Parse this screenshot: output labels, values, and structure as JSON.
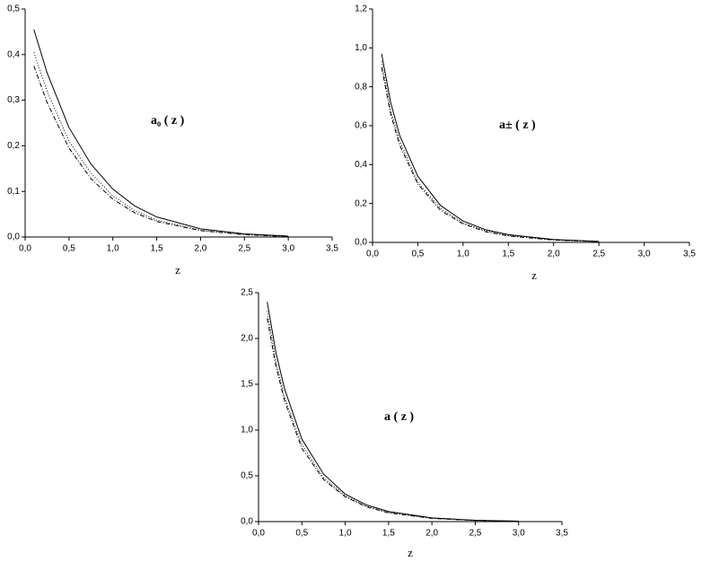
{
  "chart_data": [
    {
      "type": "line",
      "annotation": "a₀ ( z )",
      "x_label": "z",
      "xlim": [
        0,
        3.5
      ],
      "ylim": [
        0,
        0.5
      ],
      "xticks": [
        {
          "value": 0,
          "label": "0,0"
        },
        {
          "value": 0.5,
          "label": "0,5"
        },
        {
          "value": 1,
          "label": "1,0"
        },
        {
          "value": 1.5,
          "label": "1,5"
        },
        {
          "value": 2,
          "label": "2,0"
        },
        {
          "value": 2.5,
          "label": "2,5"
        },
        {
          "value": 3,
          "label": "3,0"
        },
        {
          "value": 3.5,
          "label": "3,5"
        }
      ],
      "yticks": [
        {
          "value": 0,
          "label": "0,0"
        },
        {
          "value": 0.1,
          "label": "0,1"
        },
        {
          "value": 0.2,
          "label": "0,2"
        },
        {
          "value": 0.3,
          "label": "0,3"
        },
        {
          "value": 0.4,
          "label": "0,4"
        },
        {
          "value": 0.5,
          "label": "0,5"
        }
      ],
      "x": [
        0.1,
        0.25,
        0.5,
        0.75,
        1.0,
        1.25,
        1.5,
        2.0,
        2.5,
        3.0
      ],
      "series": [
        {
          "color": "#000000",
          "dash": "solid",
          "values": [
            0.455,
            0.36,
            0.24,
            0.16,
            0.105,
            0.068,
            0.044,
            0.018,
            0.007,
            0.002
          ]
        },
        {
          "color": "#000000",
          "dash": "dotted",
          "values": [
            0.405,
            0.32,
            0.21,
            0.14,
            0.09,
            0.058,
            0.037,
            0.015,
            0.006,
            0.002
          ]
        },
        {
          "color": "#000000",
          "dash": "dashdot",
          "values": [
            0.375,
            0.295,
            0.195,
            0.128,
            0.083,
            0.053,
            0.034,
            0.014,
            0.005,
            0.001
          ]
        }
      ]
    },
    {
      "type": "line",
      "annotation": "a± ( z )",
      "x_label": "z",
      "xlim": [
        0,
        3.5
      ],
      "ylim": [
        0,
        1.2
      ],
      "xticks": [
        {
          "value": 0,
          "label": "0,0"
        },
        {
          "value": 0.5,
          "label": "0,5"
        },
        {
          "value": 1,
          "label": "1,0"
        },
        {
          "value": 1.5,
          "label": "1,5"
        },
        {
          "value": 2,
          "label": "2,0"
        },
        {
          "value": 2.5,
          "label": "2,5"
        },
        {
          "value": 3,
          "label": "3,0"
        },
        {
          "value": 3.5,
          "label": "3,5"
        }
      ],
      "yticks": [
        {
          "value": 0,
          "label": "0,0"
        },
        {
          "value": 0.2,
          "label": "0,2"
        },
        {
          "value": 0.4,
          "label": "0,4"
        },
        {
          "value": 0.6,
          "label": "0,6"
        },
        {
          "value": 0.8,
          "label": "0,8"
        },
        {
          "value": 1.0,
          "label": "1,0"
        },
        {
          "value": 1.2,
          "label": "1,2"
        }
      ],
      "x": [
        0.1,
        0.2,
        0.3,
        0.5,
        0.75,
        1.0,
        1.25,
        1.5,
        2.0,
        2.5
      ],
      "series": [
        {
          "color": "#000000",
          "dash": "solid",
          "values": [
            0.97,
            0.72,
            0.55,
            0.34,
            0.19,
            0.11,
            0.065,
            0.04,
            0.015,
            0.005
          ]
        },
        {
          "color": "#000000",
          "dash": "dotted",
          "values": [
            0.93,
            0.68,
            0.52,
            0.31,
            0.175,
            0.1,
            0.06,
            0.036,
            0.013,
            0.004
          ]
        },
        {
          "color": "#000000",
          "dash": "dashdot",
          "values": [
            0.9,
            0.66,
            0.5,
            0.3,
            0.165,
            0.095,
            0.055,
            0.033,
            0.012,
            0.004
          ]
        }
      ]
    },
    {
      "type": "line",
      "annotation": "a ( z )",
      "x_label": "z",
      "xlim": [
        0,
        3.5
      ],
      "ylim": [
        0,
        2.5
      ],
      "xticks": [
        {
          "value": 0,
          "label": "0,0"
        },
        {
          "value": 0.5,
          "label": "0,5"
        },
        {
          "value": 1,
          "label": "1,0"
        },
        {
          "value": 1.5,
          "label": "1,5"
        },
        {
          "value": 2,
          "label": "2,0"
        },
        {
          "value": 2.5,
          "label": "2,5"
        },
        {
          "value": 3,
          "label": "3,0"
        },
        {
          "value": 3.5,
          "label": "3,5"
        }
      ],
      "yticks": [
        {
          "value": 0,
          "label": "0,0"
        },
        {
          "value": 0.5,
          "label": "0,5"
        },
        {
          "value": 1.0,
          "label": "1,0"
        },
        {
          "value": 1.5,
          "label": "1,5"
        },
        {
          "value": 2.0,
          "label": "2,0"
        },
        {
          "value": 2.5,
          "label": "2,5"
        }
      ],
      "x": [
        0.1,
        0.2,
        0.3,
        0.5,
        0.75,
        1.0,
        1.25,
        1.5,
        2.0,
        2.5,
        3.0
      ],
      "series": [
        {
          "color": "#000000",
          "dash": "solid",
          "values": [
            2.4,
            1.85,
            1.45,
            0.9,
            0.52,
            0.3,
            0.18,
            0.11,
            0.04,
            0.015,
            0.005
          ]
        },
        {
          "color": "#000000",
          "dash": "dotted",
          "values": [
            2.3,
            1.75,
            1.36,
            0.84,
            0.48,
            0.28,
            0.165,
            0.1,
            0.037,
            0.013,
            0.004
          ]
        },
        {
          "color": "#000000",
          "dash": "dashdot",
          "values": [
            2.22,
            1.7,
            1.32,
            0.8,
            0.46,
            0.27,
            0.16,
            0.095,
            0.035,
            0.012,
            0.004
          ]
        }
      ]
    }
  ]
}
